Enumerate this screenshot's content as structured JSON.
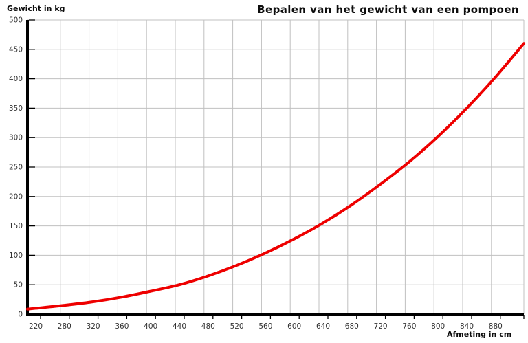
{
  "chart_data": {
    "type": "line",
    "title": "Bepalen van het gewicht van een pompoen",
    "ylabel": "Gewicht in kg",
    "xlabel": "Afmeting in cm",
    "x": [
      220,
      280,
      320,
      360,
      400,
      440,
      480,
      520,
      560,
      600,
      640,
      680,
      720,
      760,
      800,
      840,
      880,
      920
    ],
    "values": [
      10,
      15,
      21,
      29,
      39,
      50,
      65,
      83,
      104,
      128,
      155,
      186,
      221,
      259,
      302,
      350,
      403,
      460
    ],
    "xtick_labels": [
      "220",
      "280",
      "320",
      "360",
      "400",
      "440",
      "480",
      "520",
      "560",
      "600",
      "640",
      "680",
      "720",
      "760",
      "800",
      "840",
      "880"
    ],
    "ytick_labels": [
      "0",
      "50",
      "100",
      "150",
      "200",
      "250",
      "300",
      "350",
      "400",
      "450",
      "500"
    ],
    "ylim": [
      0,
      500
    ],
    "ytick_step": 50,
    "grid": true,
    "legend": "none",
    "colors": {
      "series": "#ee0000",
      "grid": "#c0c0c0",
      "axis": "#000000",
      "tick_text": "#333333",
      "background": "#ffffff"
    }
  }
}
